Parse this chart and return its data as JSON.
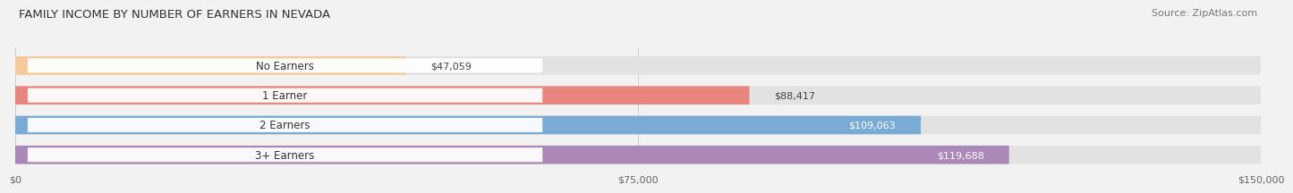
{
  "title": "FAMILY INCOME BY NUMBER OF EARNERS IN NEVADA",
  "source": "Source: ZipAtlas.com",
  "categories": [
    "No Earners",
    "1 Earner",
    "2 Earners",
    "3+ Earners"
  ],
  "values": [
    47059,
    88417,
    109063,
    119688
  ],
  "bar_colors": [
    "#f5c99b",
    "#e8857e",
    "#7aabd4",
    "#aa88b8"
  ],
  "max_value": 150000,
  "xticks": [
    0,
    75000,
    150000
  ],
  "xtick_labels": [
    "$0",
    "$75,000",
    "$150,000"
  ],
  "value_labels": [
    "$47,059",
    "$88,417",
    "$109,063",
    "$119,688"
  ],
  "value_inside": [
    false,
    false,
    true,
    true
  ],
  "bg_color": "#f2f2f2",
  "bar_bg_color": "#e2e2e2",
  "title_fontsize": 9.5,
  "source_fontsize": 8,
  "label_fontsize": 8.5,
  "value_fontsize": 8,
  "tick_fontsize": 8
}
